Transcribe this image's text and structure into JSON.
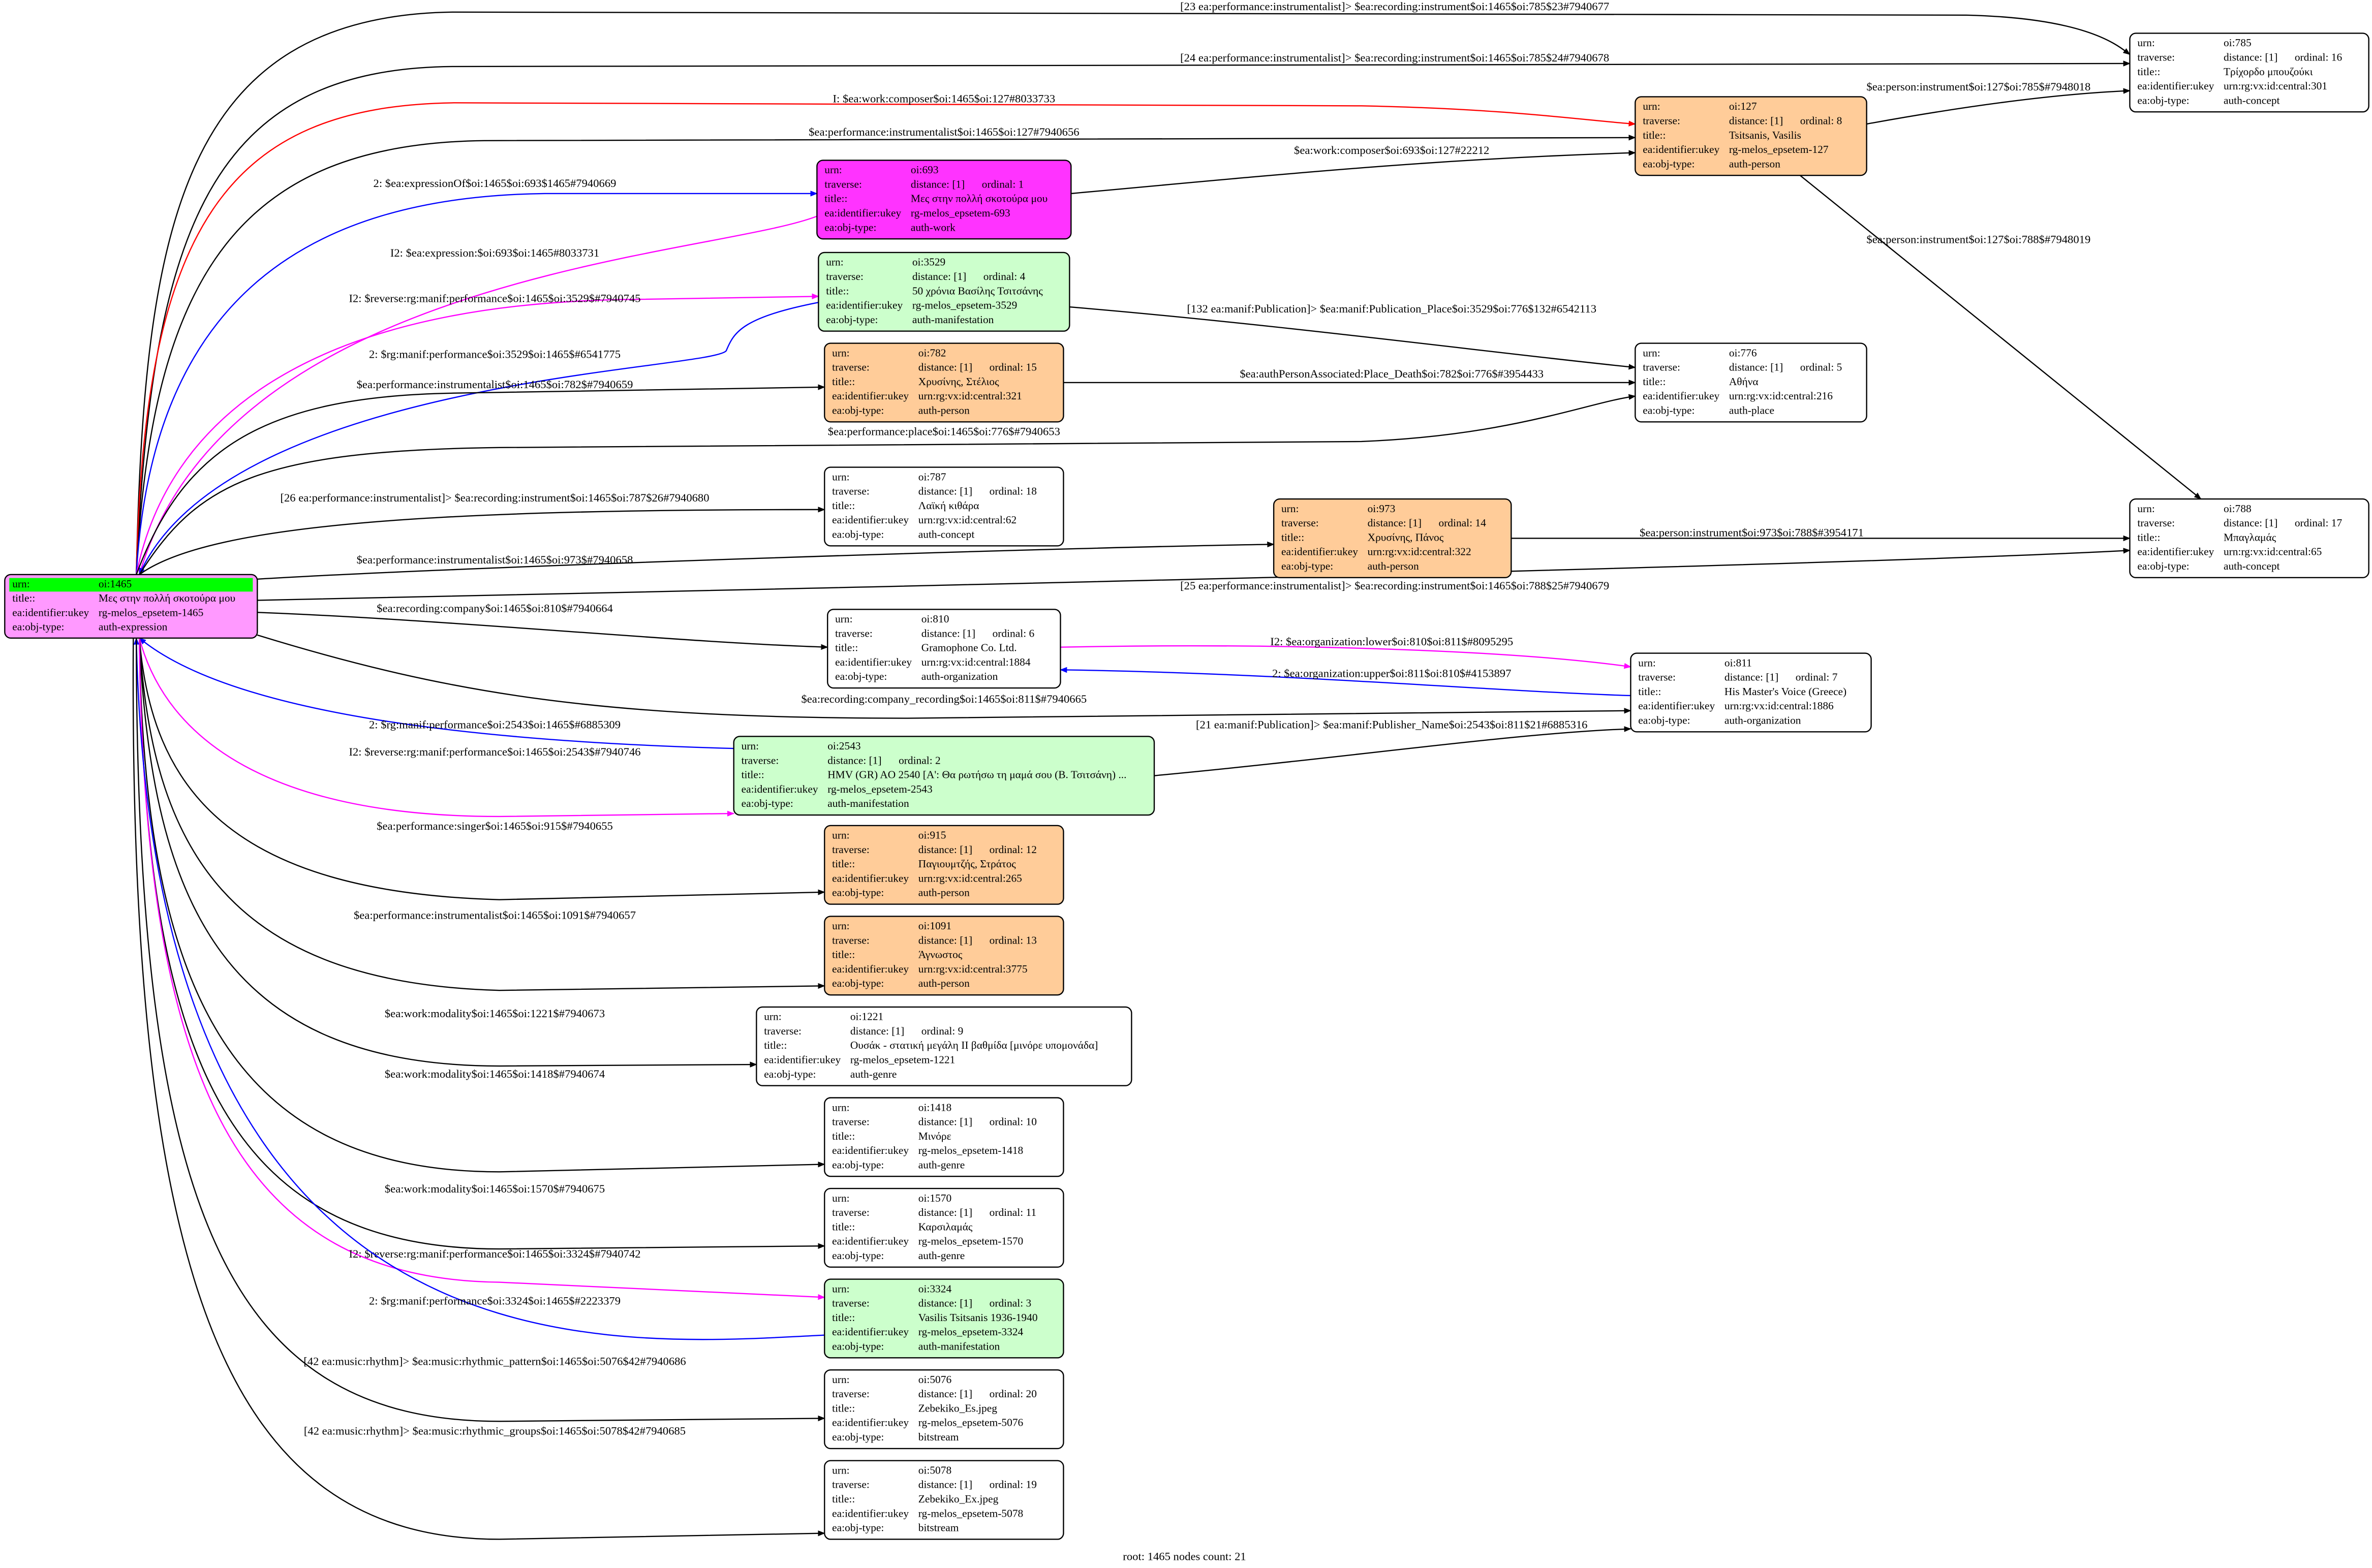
{
  "nodes": [
    {
      "color": "#ff99ff",
      "header_color": "#00ff00",
      "rows": [
        [
          "urn:",
          "oi:1465"
        ],
        [
          "title::",
          "Μες στην πολλή σκοτούρα μου"
        ],
        [
          "ea:identifier:ukey",
          "rg-melos_epsetem-1465"
        ],
        [
          "ea:obj-type:",
          "auth-expression"
        ]
      ]
    },
    {
      "color": "#ffffff",
      "rows": [
        [
          "urn:",
          "oi:785"
        ],
        [
          "traverse:",
          "distance: [1]",
          "ordinal: 16"
        ],
        [
          "title::",
          "Τρίχορδο μπουζούκι"
        ],
        [
          "ea:identifier:ukey",
          "urn:rg:vx:id:central:301"
        ],
        [
          "ea:obj-type:",
          "auth-concept"
        ]
      ]
    },
    {
      "color": "#ffcc99",
      "rows": [
        [
          "urn:",
          "oi:127"
        ],
        [
          "traverse:",
          "distance: [1]",
          "ordinal: 8"
        ],
        [
          "title::",
          "Tsitsanis, Vasilis"
        ],
        [
          "ea:identifier:ukey",
          "rg-melos_epsetem-127"
        ],
        [
          "ea:obj-type:",
          "auth-person"
        ]
      ]
    },
    {
      "color": "#ff33ff",
      "rows": [
        [
          "urn:",
          "oi:693"
        ],
        [
          "traverse:",
          "distance: [1]",
          "ordinal: 1"
        ],
        [
          "title::",
          "Μες στην πολλή σκοτούρα μου"
        ],
        [
          "ea:identifier:ukey",
          "rg-melos_epsetem-693"
        ],
        [
          "ea:obj-type:",
          "auth-work"
        ]
      ]
    },
    {
      "color": "#ccffcc",
      "rows": [
        [
          "urn:",
          "oi:3529"
        ],
        [
          "traverse:",
          "distance: [1]",
          "ordinal: 4"
        ],
        [
          "title::",
          "50 χρόνια Βασίλης Τσιτσάνης"
        ],
        [
          "ea:identifier:ukey",
          "rg-melos_epsetem-3529"
        ],
        [
          "ea:obj-type:",
          "auth-manifestation"
        ]
      ]
    },
    {
      "color": "#ffcc99",
      "rows": [
        [
          "urn:",
          "oi:782"
        ],
        [
          "traverse:",
          "distance: [1]",
          "ordinal: 15"
        ],
        [
          "title::",
          "Χρυσίνης, Στέλιος"
        ],
        [
          "ea:identifier:ukey",
          "urn:rg:vx:id:central:321"
        ],
        [
          "ea:obj-type:",
          "auth-person"
        ]
      ]
    },
    {
      "color": "#ffffff",
      "rows": [
        [
          "urn:",
          "oi:776"
        ],
        [
          "traverse:",
          "distance: [1]",
          "ordinal: 5"
        ],
        [
          "title::",
          "Αθήνα"
        ],
        [
          "ea:identifier:ukey",
          "urn:rg:vx:id:central:216"
        ],
        [
          "ea:obj-type:",
          "auth-place"
        ]
      ]
    },
    {
      "color": "#ffffff",
      "rows": [
        [
          "urn:",
          "oi:787"
        ],
        [
          "traverse:",
          "distance: [1]",
          "ordinal: 18"
        ],
        [
          "title::",
          "Λαϊκή κιθάρα"
        ],
        [
          "ea:identifier:ukey",
          "urn:rg:vx:id:central:62"
        ],
        [
          "ea:obj-type:",
          "auth-concept"
        ]
      ]
    },
    {
      "color": "#ffcc99",
      "rows": [
        [
          "urn:",
          "oi:973"
        ],
        [
          "traverse:",
          "distance: [1]",
          "ordinal: 14"
        ],
        [
          "title::",
          "Χρυσίνης, Πάνος"
        ],
        [
          "ea:identifier:ukey",
          "urn:rg:vx:id:central:322"
        ],
        [
          "ea:obj-type:",
          "auth-person"
        ]
      ]
    },
    {
      "color": "#ffffff",
      "rows": [
        [
          "urn:",
          "oi:788"
        ],
        [
          "traverse:",
          "distance: [1]",
          "ordinal: 17"
        ],
        [
          "title::",
          "Μπαγλαμάς"
        ],
        [
          "ea:identifier:ukey",
          "urn:rg:vx:id:central:65"
        ],
        [
          "ea:obj-type:",
          "auth-concept"
        ]
      ]
    },
    {
      "color": "#ffffff",
      "rows": [
        [
          "urn:",
          "oi:810"
        ],
        [
          "traverse:",
          "distance: [1]",
          "ordinal: 6"
        ],
        [
          "title::",
          "Gramophone Co. Ltd."
        ],
        [
          "ea:identifier:ukey",
          "urn:rg:vx:id:central:1884"
        ],
        [
          "ea:obj-type:",
          "auth-organization"
        ]
      ]
    },
    {
      "color": "#ffffff",
      "rows": [
        [
          "urn:",
          "oi:811"
        ],
        [
          "traverse:",
          "distance: [1]",
          "ordinal: 7"
        ],
        [
          "title::",
          "His Master's Voice (Greece)"
        ],
        [
          "ea:identifier:ukey",
          "urn:rg:vx:id:central:1886"
        ],
        [
          "ea:obj-type:",
          "auth-organization"
        ]
      ]
    },
    {
      "color": "#ccffcc",
      "rows": [
        [
          "urn:",
          "oi:2543"
        ],
        [
          "traverse:",
          "distance: [1]",
          "ordinal: 2"
        ],
        [
          "title::",
          "HMV (GR) AO 2540 [Α': Θα ρωτήσω τη μαμά σου (Β. Τσιτσάνη) ..."
        ],
        [
          "ea:identifier:ukey",
          "rg-melos_epsetem-2543"
        ],
        [
          "ea:obj-type:",
          "auth-manifestation"
        ]
      ]
    },
    {
      "color": "#ffcc99",
      "rows": [
        [
          "urn:",
          "oi:915"
        ],
        [
          "traverse:",
          "distance: [1]",
          "ordinal: 12"
        ],
        [
          "title::",
          "Παγιουμτζής, Στράτος"
        ],
        [
          "ea:identifier:ukey",
          "urn:rg:vx:id:central:265"
        ],
        [
          "ea:obj-type:",
          "auth-person"
        ]
      ]
    },
    {
      "color": "#ffcc99",
      "rows": [
        [
          "urn:",
          "oi:1091"
        ],
        [
          "traverse:",
          "distance: [1]",
          "ordinal: 13"
        ],
        [
          "title::",
          "Άγνωστος"
        ],
        [
          "ea:identifier:ukey",
          "urn:rg:vx:id:central:3775"
        ],
        [
          "ea:obj-type:",
          "auth-person"
        ]
      ]
    },
    {
      "color": "#ffffff",
      "rows": [
        [
          "urn:",
          "oi:1221"
        ],
        [
          "traverse:",
          "distance: [1]",
          "ordinal: 9"
        ],
        [
          "title::",
          "Ουσάκ - στατική μεγάλη ΙΙ βαθμίδα [μινόρε υπομονάδα]"
        ],
        [
          "ea:identifier:ukey",
          "rg-melos_epsetem-1221"
        ],
        [
          "ea:obj-type:",
          "auth-genre"
        ]
      ]
    },
    {
      "color": "#ffffff",
      "rows": [
        [
          "urn:",
          "oi:1418"
        ],
        [
          "traverse:",
          "distance: [1]",
          "ordinal: 10"
        ],
        [
          "title::",
          "Μινόρε"
        ],
        [
          "ea:identifier:ukey",
          "rg-melos_epsetem-1418"
        ],
        [
          "ea:obj-type:",
          "auth-genre"
        ]
      ]
    },
    {
      "color": "#ffffff",
      "rows": [
        [
          "urn:",
          "oi:1570"
        ],
        [
          "traverse:",
          "distance: [1]",
          "ordinal: 11"
        ],
        [
          "title::",
          "Καρσιλαμάς"
        ],
        [
          "ea:identifier:ukey",
          "rg-melos_epsetem-1570"
        ],
        [
          "ea:obj-type:",
          "auth-genre"
        ]
      ]
    },
    {
      "color": "#ccffcc",
      "rows": [
        [
          "urn:",
          "oi:3324"
        ],
        [
          "traverse:",
          "distance: [1]",
          "ordinal: 3"
        ],
        [
          "title::",
          "Vasilis Tsitsanis 1936-1940"
        ],
        [
          "ea:identifier:ukey",
          "rg-melos_epsetem-3324"
        ],
        [
          "ea:obj-type:",
          "auth-manifestation"
        ]
      ]
    },
    {
      "color": "#ffffff",
      "rows": [
        [
          "urn:",
          "oi:5076"
        ],
        [
          "traverse:",
          "distance: [1]",
          "ordinal: 20"
        ],
        [
          "title::",
          "Zebekiko_Es.jpeg"
        ],
        [
          "ea:identifier:ukey",
          "rg-melos_epsetem-5076"
        ],
        [
          "ea:obj-type:",
          "bitstream"
        ]
      ]
    },
    {
      "color": "#ffffff",
      "rows": [
        [
          "urn:",
          "oi:5078"
        ],
        [
          "traverse:",
          "distance: [1]",
          "ordinal: 19"
        ],
        [
          "title::",
          "Zebekiko_Ex.jpeg"
        ],
        [
          "ea:identifier:ukey",
          "rg-melos_epsetem-5078"
        ],
        [
          "ea:obj-type:",
          "bitstream"
        ]
      ]
    }
  ],
  "edges": [
    {
      "label": "[23 ea:performance:instrumentalist]> $ea:recording:instrument$oi:1465$oi:785$23#7940677",
      "color": "#000000"
    },
    {
      "label": "[24 ea:performance:instrumentalist]> $ea:recording:instrument$oi:1465$oi:785$24#7940678",
      "color": "#000000"
    },
    {
      "label": "I: $ea:work:composer$oi:1465$oi:127#8033733",
      "color": "#ff0000"
    },
    {
      "label": "$ea:performance:instrumentalist$oi:1465$oi:127#7940656",
      "color": "#000000"
    },
    {
      "label": "2: $ea:expressionOf$oi:1465$oi:693$1465#7940669",
      "color": "#0000ff"
    },
    {
      "label": "$ea:work:composer$oi:693$oi:127#22212",
      "color": "#000000"
    },
    {
      "label": "I2: $ea:expression:$oi:693$oi:1465#8033731",
      "color": "#ff00ff"
    },
    {
      "label": "$ea:person:instrument$oi:127$oi:785$#7948018",
      "color": "#000000"
    },
    {
      "label": "$ea:person:instrument$oi:127$oi:788$#7948019",
      "color": "#000000"
    },
    {
      "label": "I2: $reverse:rg:manif:performance$oi:1465$oi:3529$#7940745",
      "color": "#ff00ff"
    },
    {
      "label": "2: $rg:manif:performance$oi:3529$oi:1465$#6541775",
      "color": "#0000ff"
    },
    {
      "label": "$ea:performance:instrumentalist$oi:1465$oi:782$#7940659",
      "color": "#000000"
    },
    {
      "label": "[132 ea:manif:Publication]> $ea:manif:Publication_Place$oi:3529$oi:776$132#6542113",
      "color": "#000000"
    },
    {
      "label": "$ea:authPersonAssociated:Place_Death$oi:782$oi:776$#3954433",
      "color": "#000000"
    },
    {
      "label": "$ea:performance:place$oi:1465$oi:776$#7940653",
      "color": "#000000"
    },
    {
      "label": "[26 ea:performance:instrumentalist]> $ea:recording:instrument$oi:1465$oi:787$26#7940680",
      "color": "#000000"
    },
    {
      "label": "$ea:performance:instrumentalist$oi:1465$oi:973$#7940658",
      "color": "#000000"
    },
    {
      "label": "$ea:person:instrument$oi:973$oi:788$#3954171",
      "color": "#000000"
    },
    {
      "label": "[25 ea:performance:instrumentalist]> $ea:recording:instrument$oi:1465$oi:788$25#7940679",
      "color": "#000000"
    },
    {
      "label": "$ea:recording:company$oi:1465$oi:810$#7940664",
      "color": "#000000"
    },
    {
      "label": "I2: $ea:organization:lower$oi:810$oi:811$#8095295",
      "color": "#ff00ff"
    },
    {
      "label": "2: $ea:organization:upper$oi:811$oi:810$#4153897",
      "color": "#0000ff"
    },
    {
      "label": "$ea:recording:company_recording$oi:1465$oi:811$#7940665",
      "color": "#000000"
    },
    {
      "label": "2: $rg:manif:performance$oi:2543$oi:1465$#6885309",
      "color": "#0000ff"
    },
    {
      "label": "I2: $reverse:rg:manif:performance$oi:1465$oi:2543$#7940746",
      "color": "#ff00ff"
    },
    {
      "label": "[21 ea:manif:Publication]> $ea:manif:Publisher_Name$oi:2543$oi:811$21#6885316",
      "color": "#000000"
    },
    {
      "label": "$ea:performance:singer$oi:1465$oi:915$#7940655",
      "color": "#000000"
    },
    {
      "label": "$ea:performance:instrumentalist$oi:1465$oi:1091$#7940657",
      "color": "#000000"
    },
    {
      "label": "$ea:work:modality$oi:1465$oi:1221$#7940673",
      "color": "#000000"
    },
    {
      "label": "$ea:work:modality$oi:1465$oi:1418$#7940674",
      "color": "#000000"
    },
    {
      "label": "$ea:work:modality$oi:1465$oi:1570$#7940675",
      "color": "#000000"
    },
    {
      "label": "I2: $reverse:rg:manif:performance$oi:1465$oi:3324$#7940742",
      "color": "#ff00ff"
    },
    {
      "label": "2: $rg:manif:performance$oi:3324$oi:1465$#2223379",
      "color": "#0000ff"
    },
    {
      "label": "[42 ea:music:rhythm]> $ea:music:rhythmic_pattern$oi:1465$oi:5076$42#7940686",
      "color": "#000000"
    },
    {
      "label": "[42 ea:music:rhythm]> $ea:music:rhythmic_groups$oi:1465$oi:5078$42#7940685",
      "color": "#000000"
    }
  ],
  "footer": "root: 1465 nodes count: 21"
}
